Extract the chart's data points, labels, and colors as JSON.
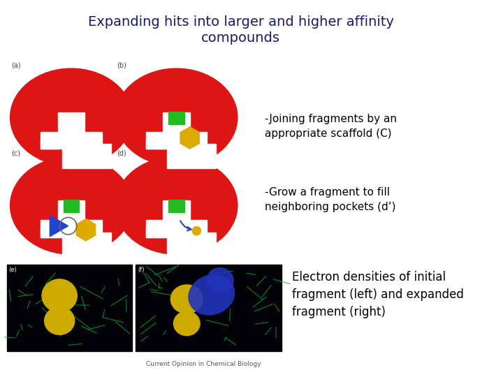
{
  "title_line1": "Expanding hits into larger and higher affinity",
  "title_line2": "compounds",
  "title_color": "#1a1a6e",
  "title_fontsize": 14,
  "bg_color": "#ffffff",
  "text1": "-Joining fragments by an\nappropriate scaffold (C)",
  "text2": "-Grow a fragment to fill\nneighboring pockets (d’)",
  "text3": "Electron densities of initial\nfragment (left) and expanded\nfragment (right)",
  "text_fontsize": 11,
  "text_color": "#000000",
  "caption": "Current Opinion in Chemical Biology",
  "caption_fontsize": 6.5,
  "red_color": "#dd1515",
  "green_color": "#22bb22",
  "yellow_color": "#ddaa00",
  "blue_color": "#2244cc",
  "label_a": "(a)",
  "label_b": "(b)",
  "label_c": "(c)",
  "label_d": "(d)",
  "label_e": "(e)",
  "label_f": "(f)"
}
